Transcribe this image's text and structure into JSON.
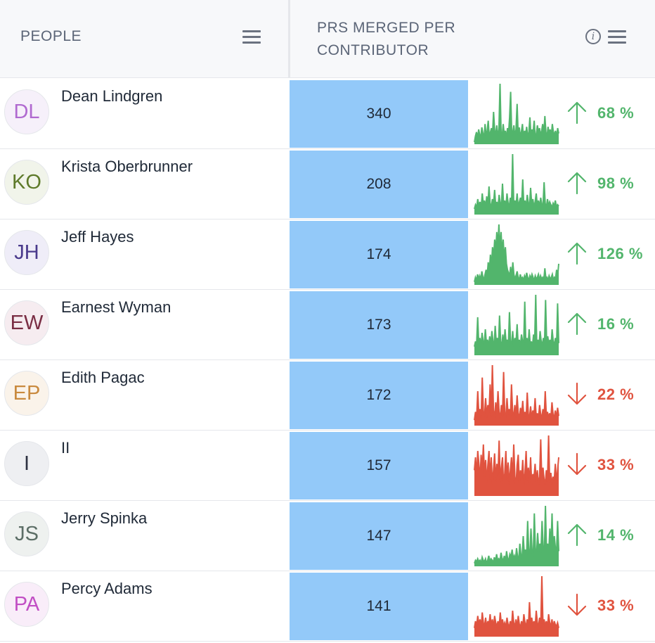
{
  "header": {
    "people_label": "PEOPLE",
    "prs_label": "PRS MERGED PER CONTRIBUTOR"
  },
  "colors": {
    "up": "#52b56c",
    "down": "#e0533f",
    "bar_fill": "#93c9f9"
  },
  "rows": [
    {
      "initials": "DL",
      "name": "Dean Lindgren",
      "count": "340",
      "trend": "up",
      "pct": "68 %",
      "avatar_color": "#b06ad0",
      "avatar_bg": "#f6f0fa",
      "spark": [
        3,
        12,
        18,
        9,
        22,
        14,
        10,
        25,
        16,
        8,
        30,
        12,
        20,
        35,
        9,
        18,
        24,
        14,
        48,
        20,
        15,
        28,
        10,
        22,
        90,
        18,
        12,
        30,
        14,
        20,
        8,
        24,
        16,
        40,
        78,
        12,
        18,
        28,
        10,
        22,
        60,
        14,
        25,
        12,
        18,
        30,
        8,
        20,
        14,
        26,
        10,
        18,
        40,
        12,
        22,
        16,
        35,
        10,
        14,
        28,
        18,
        24,
        12,
        20,
        30,
        14,
        42,
        18,
        10,
        26,
        16,
        22,
        12,
        30,
        18,
        14,
        20,
        10,
        24,
        16
      ]
    },
    {
      "initials": "KO",
      "name": "Krista Oberbrunner",
      "count": "208",
      "trend": "up",
      "pct": "98 %",
      "avatar_color": "#5e7a2a",
      "avatar_bg": "#f1f4ea",
      "spark": [
        8,
        14,
        10,
        22,
        12,
        18,
        9,
        30,
        14,
        20,
        10,
        26,
        12,
        40,
        16,
        10,
        22,
        14,
        35,
        12,
        18,
        10,
        28,
        16,
        12,
        44,
        14,
        20,
        10,
        30,
        16,
        12,
        24,
        10,
        86,
        14,
        20,
        12,
        30,
        10,
        18,
        24,
        14,
        50,
        12,
        20,
        10,
        28,
        16,
        12,
        38,
        14,
        22,
        10,
        18,
        30,
        12,
        20,
        10,
        24,
        14,
        12,
        46,
        16,
        10,
        22,
        12,
        18,
        14,
        10,
        16,
        12,
        20,
        10,
        14,
        12
      ]
    },
    {
      "initials": "JH",
      "name": "Jeff Hayes",
      "count": "174",
      "trend": "up",
      "pct": "126 %",
      "avatar_color": "#4a3a8c",
      "avatar_bg": "#efedf8",
      "spark": [
        4,
        10,
        6,
        14,
        8,
        12,
        6,
        18,
        10,
        8,
        14,
        20,
        12,
        30,
        18,
        40,
        24,
        50,
        36,
        60,
        44,
        70,
        50,
        80,
        46,
        70,
        40,
        60,
        34,
        50,
        28,
        20,
        16,
        12,
        24,
        10,
        30,
        14,
        8,
        12,
        18,
        10,
        6,
        14,
        8,
        10,
        6,
        12,
        8,
        16,
        10,
        6,
        12,
        8,
        14,
        10,
        6,
        12,
        8,
        10,
        14,
        6,
        12,
        8,
        10,
        6,
        22,
        8,
        10,
        6,
        12,
        8,
        10,
        14,
        6,
        10,
        8,
        20,
        12,
        28
      ]
    },
    {
      "initials": "EW",
      "name": "Earnest Wyman",
      "count": "173",
      "trend": "up",
      "pct": "16 %",
      "avatar_color": "#7a2e44",
      "avatar_bg": "#f6ecf0",
      "spark": [
        10,
        16,
        12,
        44,
        14,
        20,
        10,
        26,
        16,
        12,
        30,
        14,
        18,
        10,
        22,
        12,
        28,
        16,
        10,
        34,
        14,
        20,
        12,
        46,
        16,
        10,
        24,
        12,
        30,
        14,
        18,
        10,
        50,
        16,
        12,
        28,
        10,
        20,
        14,
        36,
        12,
        18,
        10,
        24,
        16,
        12,
        62,
        14,
        20,
        10,
        30,
        12,
        16,
        10,
        24,
        14,
        70,
        12,
        18,
        10,
        28,
        16,
        12,
        20,
        10,
        64,
        14,
        22,
        12,
        18,
        10,
        30,
        16,
        12,
        20,
        10,
        60,
        14
      ]
    },
    {
      "initials": "EP",
      "name": "Edith Pagac",
      "count": "172",
      "trend": "down",
      "pct": "22 %",
      "avatar_color": "#c98a3e",
      "avatar_bg": "#faf3ea",
      "spark": [
        8,
        20,
        12,
        50,
        16,
        24,
        10,
        70,
        20,
        14,
        40,
        12,
        30,
        18,
        60,
        14,
        88,
        22,
        12,
        34,
        16,
        50,
        20,
        10,
        30,
        14,
        78,
        18,
        12,
        40,
        16,
        24,
        10,
        60,
        20,
        14,
        30,
        12,
        44,
        18,
        10,
        26,
        14,
        36,
        12,
        20,
        10,
        48,
        16,
        12,
        28,
        10,
        22,
        14,
        40,
        12,
        18,
        10,
        30,
        16,
        12,
        24,
        10,
        50,
        14,
        20,
        12,
        18,
        10,
        34,
        16,
        12,
        22,
        10,
        26,
        14
      ]
    },
    {
      "initials": "I",
      "name": "II",
      "count": "157",
      "trend": "down",
      "pct": "33 %",
      "avatar_color": "#2d3142",
      "avatar_bg": "#eeeff2",
      "spark": [
        40,
        60,
        30,
        70,
        50,
        24,
        64,
        40,
        80,
        30,
        56,
        20,
        48,
        70,
        26,
        60,
        18,
        40,
        66,
        22,
        50,
        30,
        86,
        20,
        44,
        60,
        16,
        36,
        70,
        24,
        52,
        18,
        40,
        60,
        22,
        80,
        30,
        16,
        48,
        64,
        20,
        40,
        26,
        56,
        18,
        36,
        70,
        24,
        44,
        20,
        60,
        16,
        34,
        28,
        50,
        22,
        40,
        18,
        30,
        88,
        20,
        44,
        26,
        18,
        40,
        22,
        94,
        20,
        36,
        18,
        30,
        24,
        50,
        20,
        40,
        60
      ]
    },
    {
      "initials": "JS",
      "name": "Jerry Spinka",
      "count": "147",
      "trend": "up",
      "pct": "14 %",
      "avatar_color": "#5c6e66",
      "avatar_bg": "#eef1ef",
      "spark": [
        4,
        8,
        6,
        10,
        6,
        8,
        4,
        12,
        8,
        6,
        10,
        4,
        8,
        14,
        6,
        10,
        8,
        4,
        12,
        6,
        16,
        8,
        10,
        6,
        18,
        10,
        8,
        14,
        6,
        20,
        10,
        8,
        16,
        12,
        22,
        10,
        14,
        8,
        24,
        12,
        10,
        30,
        14,
        12,
        40,
        16,
        22,
        12,
        60,
        18,
        14,
        50,
        20,
        12,
        70,
        22,
        16,
        44,
        20,
        30,
        18,
        60,
        24,
        16,
        80,
        22,
        30,
        18,
        50,
        22,
        70,
        20,
        40,
        24,
        16,
        60,
        20
      ]
    },
    {
      "initials": "PA",
      "name": "Percy Adams",
      "count": "141",
      "trend": "down",
      "pct": "33 %",
      "avatar_color": "#c14fc4",
      "avatar_bg": "#f9edf9",
      "spark": [
        10,
        18,
        12,
        24,
        14,
        20,
        10,
        28,
        16,
        12,
        22,
        10,
        18,
        14,
        26,
        12,
        20,
        10,
        24,
        16,
        12,
        18,
        10,
        28,
        14,
        20,
        12,
        16,
        10,
        22,
        14,
        12,
        18,
        10,
        30,
        16,
        12,
        20,
        10,
        24,
        14,
        12,
        18,
        10,
        26,
        16,
        12,
        20,
        10,
        40,
        14,
        22,
        12,
        18,
        10,
        30,
        16,
        12,
        22,
        10,
        70,
        14,
        20,
        12,
        18,
        10,
        26,
        16,
        12,
        20,
        10,
        18,
        14,
        12,
        16,
        10
      ]
    }
  ]
}
